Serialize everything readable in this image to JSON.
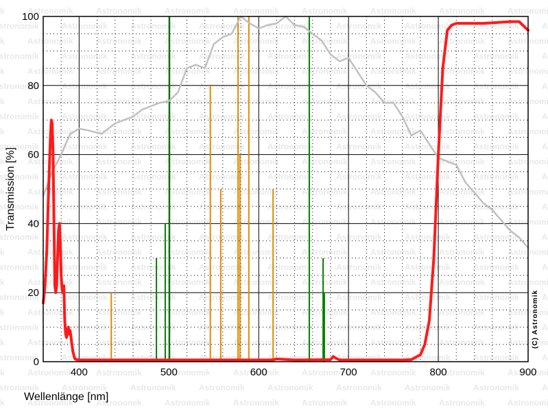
{
  "chart_data": {
    "type": "line",
    "xlabel": "Wellenlänge [nm]",
    "ylabel": "Transmission [%]",
    "xlim": [
      360,
      900
    ],
    "ylim": [
      0,
      100
    ],
    "xticks": [
      400,
      500,
      600,
      700,
      800,
      900
    ],
    "yticks": [
      0,
      20,
      40,
      60,
      80,
      100
    ],
    "grid": true,
    "watermark": "Astronomik",
    "copyright": "(C) Astronomik",
    "colors": {
      "filter": "#ff1a1a",
      "skyglow": "#c0c0c0",
      "mercury_lines": "#e08a00",
      "emission_lines": "#008000"
    },
    "series": [
      {
        "key": "filter",
        "x": [
          360,
          362,
          364,
          366,
          368,
          369,
          370,
          371,
          372,
          373,
          374,
          375,
          376,
          377,
          378,
          379,
          380,
          381,
          382,
          383,
          384,
          385,
          386,
          387,
          388,
          389,
          390,
          391,
          392,
          393,
          394,
          395,
          396,
          400,
          430,
          450,
          500,
          550,
          600,
          615,
          620,
          640,
          680,
          683,
          686,
          690,
          720,
          760,
          770,
          780,
          785,
          790,
          795,
          800,
          805,
          810,
          815,
          820,
          850,
          880,
          890,
          900
        ],
        "y": [
          17,
          22,
          32,
          50,
          65,
          70,
          69,
          60,
          40,
          22,
          20,
          22,
          30,
          38,
          40,
          35,
          25,
          21,
          20,
          22,
          12,
          8,
          7,
          9,
          10,
          8,
          9,
          7,
          5,
          3,
          2,
          1,
          0.7,
          0.5,
          0.5,
          0.5,
          0.5,
          0.5,
          0.5,
          0.5,
          0.8,
          0.5,
          0.6,
          1.5,
          1,
          0.5,
          0.5,
          0.5,
          0.6,
          2,
          5,
          12,
          30,
          60,
          85,
          96,
          97.5,
          98,
          98,
          98.5,
          98.5,
          96
        ]
      },
      {
        "key": "skyglow",
        "x": [
          360,
          370,
          380,
          390,
          400,
          410,
          425,
          430,
          440,
          450,
          460,
          470,
          480,
          490,
          500,
          510,
          520,
          530,
          540,
          550,
          560,
          570,
          580,
          590,
          600,
          610,
          620,
          630,
          640,
          650,
          660,
          670,
          680,
          690,
          700,
          710,
          720,
          730,
          740,
          750,
          760,
          770,
          780,
          790,
          800,
          810,
          820,
          830,
          840,
          850,
          860,
          870,
          880,
          890,
          900
        ],
        "y": [
          48,
          55,
          60,
          66,
          67.5,
          67,
          66,
          67,
          69,
          70,
          71,
          73,
          74,
          75,
          75.5,
          78,
          85,
          86,
          85,
          92,
          94,
          95,
          100,
          98,
          96.5,
          97.5,
          98,
          100,
          97.5,
          97,
          95,
          93,
          89,
          87,
          88,
          84,
          80,
          78,
          75,
          75,
          71,
          65.5,
          67,
          63,
          59,
          58,
          57,
          52,
          49,
          46,
          44,
          41,
          38,
          36,
          33
        ]
      }
    ],
    "lines": {
      "mercury_lines": [
        {
          "x": 435.8,
          "y": 20
        },
        {
          "x": 546.1,
          "y": 80
        },
        {
          "x": 557.7,
          "y": 50
        },
        {
          "x": 577.0,
          "y": 100
        },
        {
          "x": 579.1,
          "y": 60
        },
        {
          "x": 589.0,
          "y": 100
        },
        {
          "x": 616.0,
          "y": 50
        }
      ],
      "emission_lines": [
        {
          "x": 486.1,
          "y": 30
        },
        {
          "x": 495.9,
          "y": 40
        },
        {
          "x": 500.7,
          "y": 100
        },
        {
          "x": 656.3,
          "y": 100
        },
        {
          "x": 671.7,
          "y": 30
        },
        {
          "x": 673.1,
          "y": 20
        }
      ]
    }
  }
}
